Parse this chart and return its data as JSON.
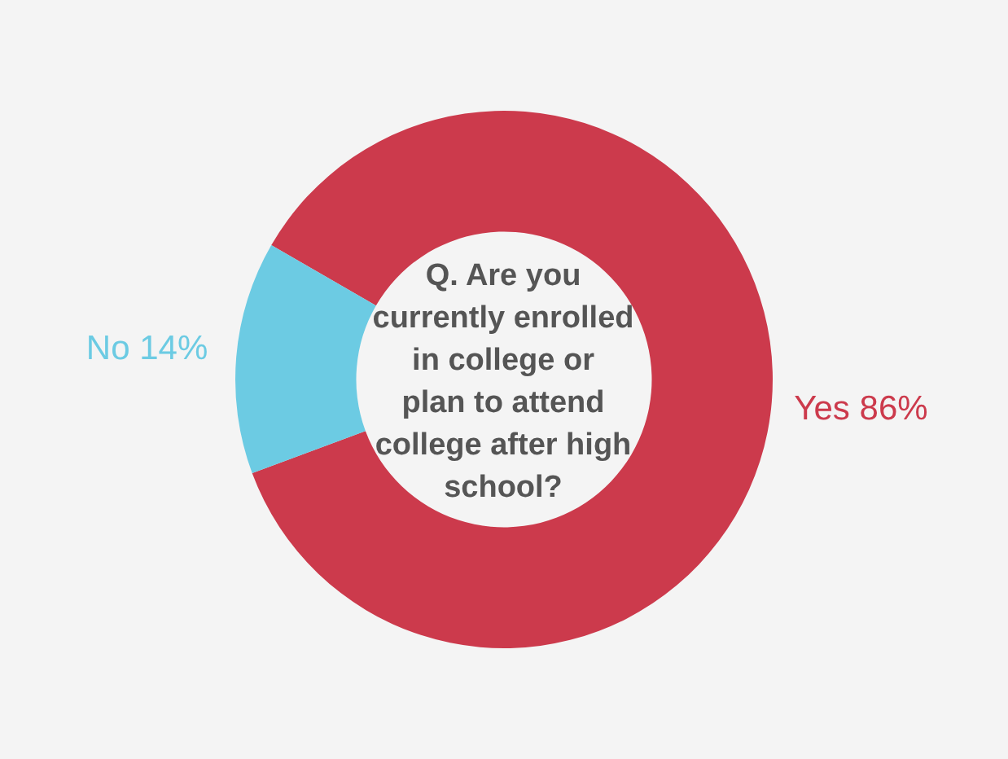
{
  "chart_data": {
    "type": "donut",
    "title": "Q. Are you\ncurrently enrolled\nin college or\nplan to attend\ncollege after high\nschool?",
    "categories": [
      "Yes",
      "No"
    ],
    "values": [
      86,
      14
    ],
    "colors": [
      "#cc3a4c",
      "#6ccbe3"
    ],
    "value_labels": [
      "86%",
      "14%"
    ],
    "legend": false
  }
}
